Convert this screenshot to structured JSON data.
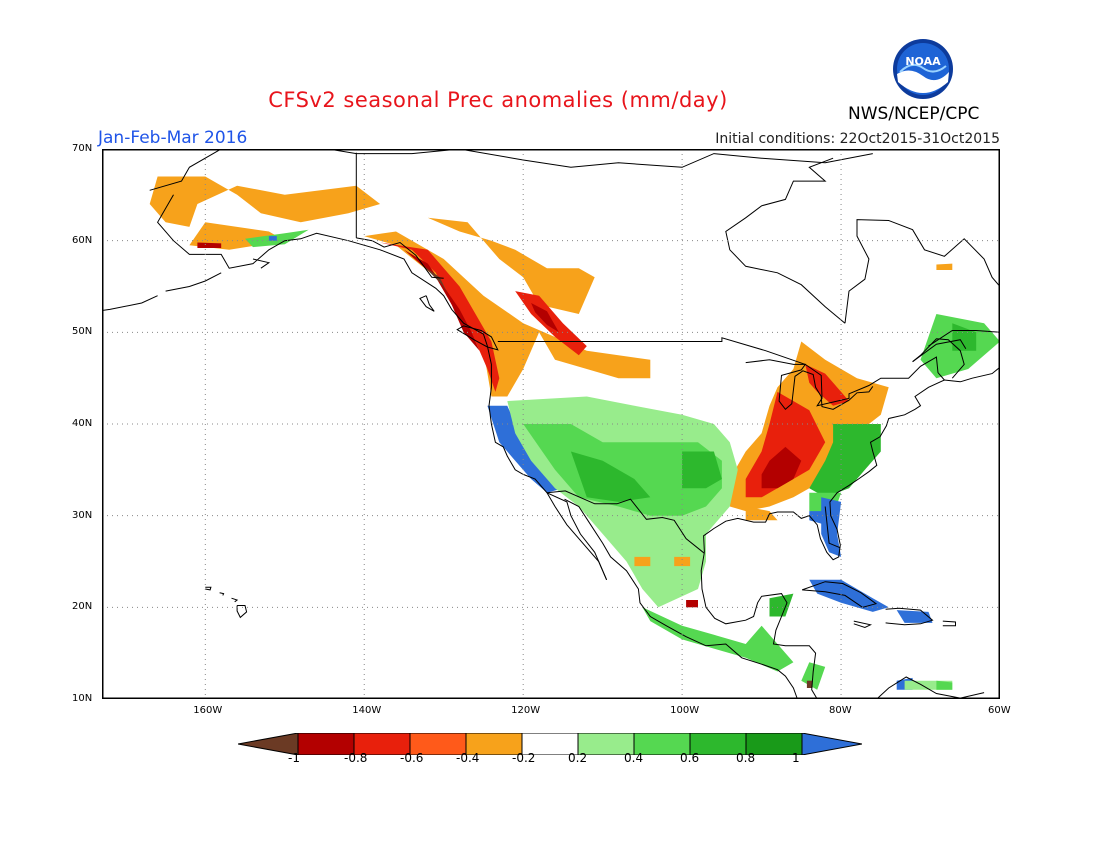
{
  "header": {
    "title": "CFSv2 seasonal Prec anomalies (mm/day)",
    "period": "Jan-Feb-Mar 2016",
    "initial_conditions": "Initial conditions: 22Oct2015-31Oct2015",
    "agency": "NWS/NCEP/CPC",
    "logo_text": "NOAA"
  },
  "map": {
    "lon_range": [
      -173,
      -60
    ],
    "lat_range": [
      10,
      70
    ],
    "lat_labels": [
      "70N",
      "60N",
      "50N",
      "40N",
      "30N",
      "20N",
      "10N"
    ],
    "lon_labels": [
      "160W",
      "140W",
      "120W",
      "100W",
      "80W",
      "60W"
    ]
  },
  "legend": {
    "ticks": [
      "-1",
      "-0.8",
      "-0.6",
      "-0.4",
      "-0.2",
      "0.2",
      "0.4",
      "0.6",
      "0.8",
      "1"
    ],
    "colors": [
      "#6b3a24",
      "#b30000",
      "#e8200c",
      "#ff5a1a",
      "#f7a21b",
      "#ffffff",
      "#98ec8c",
      "#55d851",
      "#2db82d",
      "#199a19",
      "#2e6fd8"
    ]
  }
}
